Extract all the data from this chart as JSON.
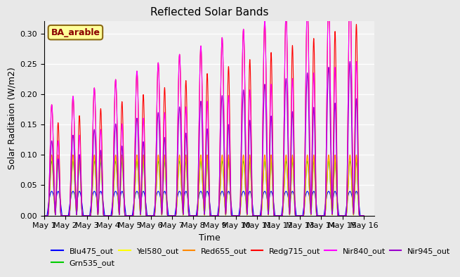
{
  "title": "Reflected Solar Bands",
  "xlabel": "Time",
  "ylabel": "Solar Raditaion (W/m2)",
  "xlim_days": 15.5,
  "ylim": [
    0,
    0.32
  ],
  "yticks": [
    0.0,
    0.05,
    0.1,
    0.15,
    0.2,
    0.25,
    0.3
  ],
  "background_color": "#e8e8e8",
  "plot_bg_color": "#f0f0f0",
  "annotation_text": "BA_arable",
  "annotation_bg": "#ffff99",
  "annotation_border": "#8b6914",
  "annotation_text_color": "#8b0000",
  "num_days": 15,
  "points_per_day": 400,
  "day_labels": [
    "May 1",
    "May 2",
    "May 3",
    "May 4",
    "May 5",
    "May 6",
    "May 7",
    "May 8",
    "May 9",
    "May 10",
    "May 11",
    "May 12",
    "May 13",
    "May 14",
    "May 15",
    "May 16"
  ],
  "series": [
    {
      "name": "Blu475_out",
      "color": "#0000ff",
      "peak1": 0.04,
      "peak2": 0.04,
      "growth": false,
      "sharp": false
    },
    {
      "name": "Grn535_out",
      "color": "#00cc00",
      "peak1": 0.09,
      "peak2": 0.09,
      "growth": false,
      "sharp": true
    },
    {
      "name": "Yel580_out",
      "color": "#ffff00",
      "peak1": 0.095,
      "peak2": 0.095,
      "growth": false,
      "sharp": true
    },
    {
      "name": "Red655_out",
      "color": "#ff8800",
      "peak1": 0.1,
      "peak2": 0.1,
      "growth": false,
      "sharp": true
    },
    {
      "name": "Redg715_out",
      "color": "#ff0000",
      "peak1": 0.215,
      "peak2": 0.18,
      "growth": true,
      "sharp": true
    },
    {
      "name": "Nir840_out",
      "color": "#ff00ff",
      "peak1": 0.215,
      "peak2": 0.145,
      "growth": true,
      "sharp": true
    },
    {
      "name": "Nir945_out",
      "color": "#9900cc",
      "peak1": 0.145,
      "peak2": 0.11,
      "growth": true,
      "sharp": true
    }
  ],
  "legend_colors": [
    "#0000ff",
    "#00cc00",
    "#ffff00",
    "#ff8800",
    "#ff0000",
    "#ff00ff",
    "#9900cc"
  ],
  "legend_names": [
    "Blu475_out",
    "Grn535_out",
    "Yel580_out",
    "Red655_out",
    "Redg715_out",
    "Nir840_out",
    "Nir945_out"
  ]
}
